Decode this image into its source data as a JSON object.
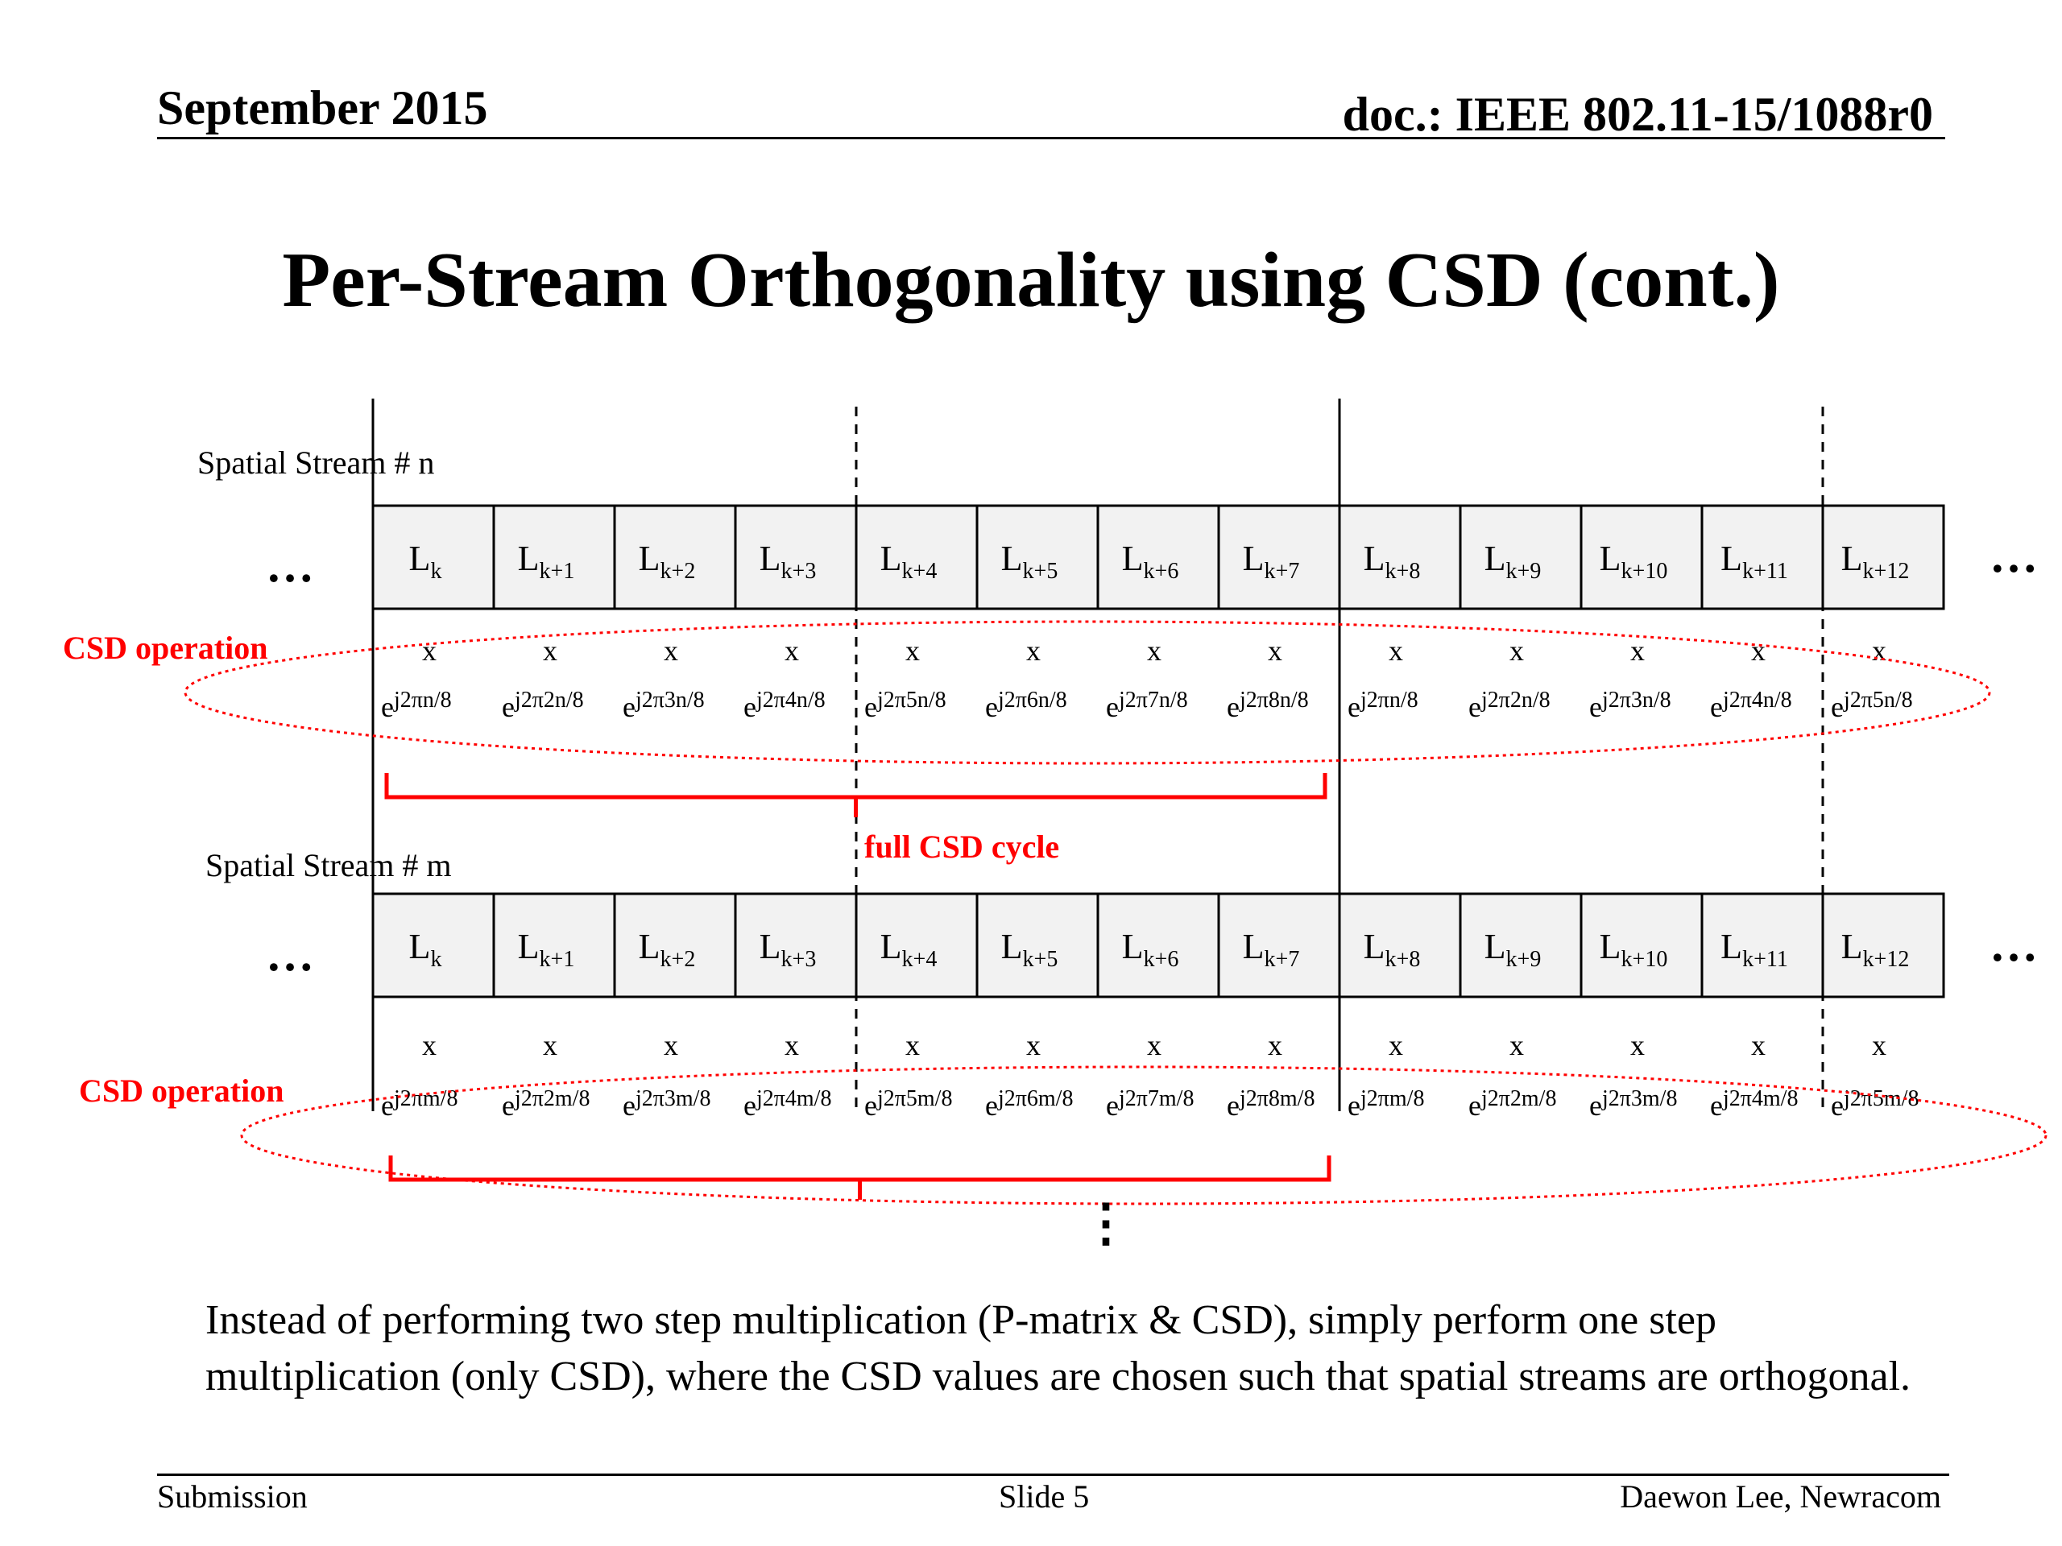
{
  "header": {
    "date": "September 2015",
    "doc": "doc.: IEEE 802.11-15/1088r0"
  },
  "title": "Per-Stream Orthogonality using CSD (cont.)",
  "diagram": {
    "streams": [
      {
        "label": "Spatial Stream # n",
        "symbols": [
          {
            "base": "L",
            "sub": "k"
          },
          {
            "base": "L",
            "sub": "k+1"
          },
          {
            "base": "L",
            "sub": "k+2"
          },
          {
            "base": "L",
            "sub": "k+3"
          },
          {
            "base": "L",
            "sub": "k+4"
          },
          {
            "base": "L",
            "sub": "k+5"
          },
          {
            "base": "L",
            "sub": "k+6"
          },
          {
            "base": "L",
            "sub": "k+7"
          },
          {
            "base": "L",
            "sub": "k+8"
          },
          {
            "base": "L",
            "sub": "k+9"
          },
          {
            "base": "L",
            "sub": "k+10"
          },
          {
            "base": "L",
            "sub": "k+11"
          },
          {
            "base": "L",
            "sub": "k+12"
          }
        ],
        "multiplier": "x",
        "factors": [
          {
            "base": "e",
            "sup": "j2πn/8"
          },
          {
            "base": "e",
            "sup": "j2π2n/8"
          },
          {
            "base": "e",
            "sup": "j2π3n/8"
          },
          {
            "base": "e",
            "sup": "j2π4n/8"
          },
          {
            "base": "e",
            "sup": "j2π5n/8"
          },
          {
            "base": "e",
            "sup": "j2π6n/8"
          },
          {
            "base": "e",
            "sup": "j2π7n/8"
          },
          {
            "base": "e",
            "sup": "j2π8n/8"
          },
          {
            "base": "e",
            "sup": "j2πn/8"
          },
          {
            "base": "e",
            "sup": "j2π2n/8"
          },
          {
            "base": "e",
            "sup": "j2π3n/8"
          },
          {
            "base": "e",
            "sup": "j2π4n/8"
          },
          {
            "base": "e",
            "sup": "j2π5n/8"
          }
        ],
        "csd_label": "CSD operation"
      },
      {
        "label": "Spatial Stream # m",
        "symbols": [
          {
            "base": "L",
            "sub": "k"
          },
          {
            "base": "L",
            "sub": "k+1"
          },
          {
            "base": "L",
            "sub": "k+2"
          },
          {
            "base": "L",
            "sub": "k+3"
          },
          {
            "base": "L",
            "sub": "k+4"
          },
          {
            "base": "L",
            "sub": "k+5"
          },
          {
            "base": "L",
            "sub": "k+6"
          },
          {
            "base": "L",
            "sub": "k+7"
          },
          {
            "base": "L",
            "sub": "k+8"
          },
          {
            "base": "L",
            "sub": "k+9"
          },
          {
            "base": "L",
            "sub": "k+10"
          },
          {
            "base": "L",
            "sub": "k+11"
          },
          {
            "base": "L",
            "sub": "k+12"
          }
        ],
        "multiplier": "x",
        "factors": [
          {
            "base": "e",
            "sup": "j2πm/8"
          },
          {
            "base": "e",
            "sup": "j2π2m/8"
          },
          {
            "base": "e",
            "sup": "j2π3m/8"
          },
          {
            "base": "e",
            "sup": "j2π4m/8"
          },
          {
            "base": "e",
            "sup": "j2π5m/8"
          },
          {
            "base": "e",
            "sup": "j2π6m/8"
          },
          {
            "base": "e",
            "sup": "j2π7m/8"
          },
          {
            "base": "e",
            "sup": "j2π8m/8"
          },
          {
            "base": "e",
            "sup": "j2πm/8"
          },
          {
            "base": "e",
            "sup": "j2π2m/8"
          },
          {
            "base": "e",
            "sup": "j2π3m/8"
          },
          {
            "base": "e",
            "sup": "j2π4m/8"
          },
          {
            "base": "e",
            "sup": "j2π5m/8"
          }
        ],
        "csd_label": "CSD operation"
      }
    ],
    "cycle_label": "full CSD cycle",
    "ellipsis": "…",
    "vertical_ellipsis": "⋮",
    "colors": {
      "accent": "#ff0000",
      "cell_fill": "#f2f2f2",
      "line": "#000000"
    }
  },
  "body_text": "Instead of performing two step multiplication (P-matrix & CSD), simply perform one step multiplication (only CSD), where the CSD values are chosen such that spatial streams are orthogonal.",
  "footer": {
    "left": "Submission",
    "center": "Slide 5",
    "right": "Daewon Lee, Newracom"
  }
}
